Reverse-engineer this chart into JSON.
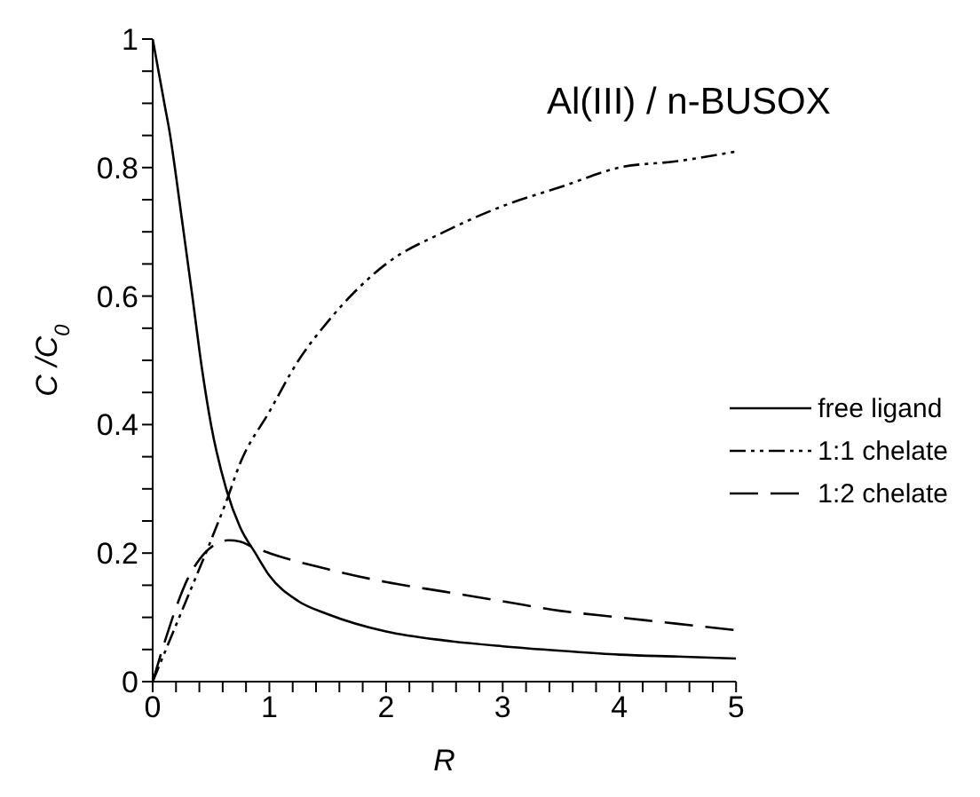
{
  "chart_data": {
    "type": "line",
    "title": "Al(III) / n-BUSOX",
    "xlabel": "R",
    "ylabel": "C /C$_{0}$",
    "xlim": [
      0,
      5
    ],
    "ylim": [
      0,
      1
    ],
    "xticks": [
      0,
      {
        "value": 0.2,
        "label": null
      },
      {
        "value": 0.4,
        "label": null
      },
      {
        "value": 0.6,
        "label": null
      },
      {
        "value": 0.8,
        "label": null
      },
      1,
      {
        "value": 1.2,
        "label": null
      },
      {
        "value": 1.4,
        "label": null
      },
      {
        "value": 1.6,
        "label": null
      },
      {
        "value": 1.8,
        "label": null
      },
      2,
      {
        "value": 2.2,
        "label": null
      },
      {
        "value": 2.4,
        "label": null
      },
      {
        "value": 2.6,
        "label": null
      },
      {
        "value": 2.8,
        "label": null
      },
      3,
      {
        "value": 3.2,
        "label": null
      },
      {
        "value": 3.4,
        "label": null
      },
      {
        "value": 3.6,
        "label": null
      },
      {
        "value": 3.8,
        "label": null
      },
      4,
      {
        "value": 4.2,
        "label": null
      },
      {
        "value": 4.4,
        "label": null
      },
      {
        "value": 4.6,
        "label": null
      },
      {
        "value": 4.8,
        "label": null
      },
      5
    ],
    "yticks": [
      0,
      {
        "value": 0.05,
        "label": null
      },
      {
        "value": 0.1,
        "label": null
      },
      {
        "value": 0.15,
        "label": null
      },
      0.2,
      {
        "value": 0.25,
        "label": null
      },
      {
        "value": 0.3,
        "label": null
      },
      {
        "value": 0.35,
        "label": null
      },
      0.4,
      {
        "value": 0.45,
        "label": null
      },
      {
        "value": 0.5,
        "label": null
      },
      {
        "value": 0.55,
        "label": null
      },
      0.6,
      {
        "value": 0.65,
        "label": null
      },
      {
        "value": 0.7,
        "label": null
      },
      {
        "value": 0.75,
        "label": null
      },
      0.8,
      {
        "value": 0.85,
        "label": null
      },
      {
        "value": 0.9,
        "label": null
      },
      {
        "value": 0.95,
        "label": null
      },
      1
    ],
    "grid": false,
    "legend": "right",
    "marker": "none",
    "series": [
      {
        "name": "free ligand",
        "color": "#000000",
        "line_style": "solid",
        "x": [
          0,
          0.05,
          0.1,
          0.15,
          0.19,
          0.25,
          0.34,
          0.42,
          0.5,
          0.63,
          0.75,
          0.88,
          1,
          1.25,
          1.5,
          2,
          2.5,
          3,
          3.5,
          4,
          4.5,
          5
        ],
        "values": [
          1,
          0.95,
          0.9,
          0.85,
          0.8,
          0.72,
          0.6,
          0.49,
          0.4,
          0.3,
          0.24,
          0.2,
          0.165,
          0.125,
          0.105,
          0.078,
          0.064,
          0.055,
          0.048,
          0.042,
          0.039,
          0.036
        ]
      },
      {
        "name": "1:1 chelate",
        "color": "#000000",
        "line_style": "dotted",
        "x": [
          0,
          0.25,
          0.5,
          0.63,
          0.75,
          1,
          1.25,
          1.5,
          2,
          2.5,
          3,
          3.5,
          4,
          4.5,
          5
        ],
        "values": [
          0,
          0.11,
          0.22,
          0.28,
          0.34,
          0.42,
          0.5,
          0.56,
          0.65,
          0.7,
          0.74,
          0.77,
          0.8,
          0.81,
          0.825
        ]
      },
      {
        "name": "1:2 chelate",
        "color": "#000000",
        "line_style": "dashed",
        "x": [
          0,
          0.1,
          0.2,
          0.3,
          0.4,
          0.55,
          0.65,
          0.75,
          0.85,
          1,
          1.5,
          2,
          2.5,
          3,
          3.5,
          4,
          4.5,
          5
        ],
        "values": [
          0,
          0.06,
          0.115,
          0.16,
          0.19,
          0.215,
          0.22,
          0.218,
          0.21,
          0.2,
          0.175,
          0.155,
          0.14,
          0.125,
          0.11,
          0.1,
          0.09,
          0.08
        ]
      }
    ]
  }
}
